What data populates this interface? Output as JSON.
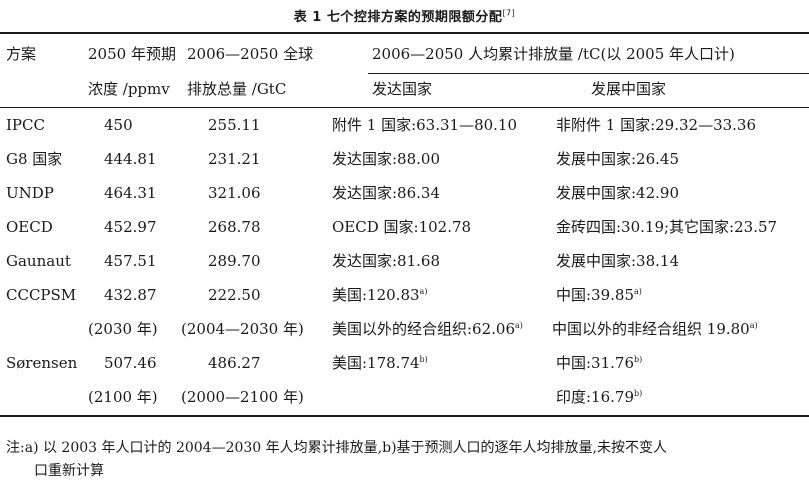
{
  "title": "表 1  七个控排方案的预期限额分配",
  "title_ref": "[7]",
  "header": {
    "col_scheme": "方案",
    "col_conc_line1": "2050 年预期",
    "col_conc_line2": "浓度 /ppmv",
    "col_total_line1": "2006—2050 全球",
    "col_total_line2": "排放总量 /GtC",
    "col_percap": "2006—2050 人均累计排放量 /tC(以 2005 年人口计)",
    "col_developed": "发达国家",
    "col_developing": "发展中国家"
  },
  "rows": [
    {
      "scheme": "IPCC",
      "conc": "450",
      "total": "255.11",
      "developed": "附件 1 国家:63.31—80.10",
      "developed_note": "",
      "developing": "非附件 1 国家:29.32—33.36",
      "developing_note": ""
    },
    {
      "scheme": "G8 国家",
      "conc": "444.81",
      "total": "231.21",
      "developed": "发达国家:88.00",
      "developed_note": "",
      "developing": "发展中国家:26.45",
      "developing_note": ""
    },
    {
      "scheme": "UNDP",
      "conc": "464.31",
      "total": "321.06",
      "developed": "发达国家:86.34",
      "developed_note": "",
      "developing": "发展中国家:42.90",
      "developing_note": ""
    },
    {
      "scheme": "OECD",
      "conc": "452.97",
      "total": "268.78",
      "developed": "OECD 国家:102.78",
      "developed_note": "",
      "developing": "金砖四国:30.19;其它国家:23.57",
      "developing_note": ""
    },
    {
      "scheme": "Gaunaut",
      "conc": "457.51",
      "total": "289.70",
      "developed": "发达国家:81.68",
      "developed_note": "",
      "developing": "发展中国家:38.14",
      "developing_note": ""
    },
    {
      "scheme": "CCCPSM",
      "conc": "432.87",
      "total": "222.50",
      "developed": "美国:120.83",
      "developed_note": "a)",
      "developing": "中国:39.85",
      "developing_note": "a)"
    },
    {
      "scheme": "",
      "conc": "(2030 年)",
      "total": "(2004—2030 年)",
      "developed": "美国以外的经合组织:62.06",
      "developed_note": "a)",
      "developing": "中国以外的非经合组织 19.80",
      "developing_note": "a)"
    },
    {
      "scheme": "Sørensen",
      "conc": "507.46",
      "total": "486.27",
      "developed": "美国:178.74",
      "developed_note": "b)",
      "developing": "中国:31.76",
      "developing_note": "b)"
    },
    {
      "scheme": "",
      "conc": "(2100 年)",
      "total": "(2000—2100 年)",
      "developed": "",
      "developed_note": "",
      "developing": "印度:16.79",
      "developing_note": "b)"
    }
  ],
  "note_line1": "注:a) 以 2003 年人口计的 2004—2030 年人均累计排放量,b)基于预测人口的逐年人均排放量,未按不变人",
  "note_line2": "口重新计算"
}
